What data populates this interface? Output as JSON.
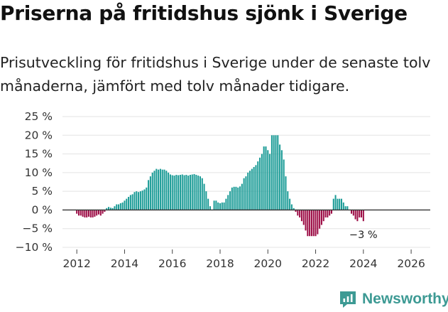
{
  "header": {
    "title": "Priserna på fritidshus sjönk i Sverige",
    "subtitle": "Prisutveckling för fritidshus i Sverige under de senaste tolv månaderna, jämfört med tolv månader tidigare."
  },
  "brand": {
    "name": "Newsworthy",
    "icon": "newsworthy-logo-icon",
    "color": "#3d9a94"
  },
  "colors": {
    "positive": "#1a9b96",
    "negative": "#9c0c45",
    "grid": "#e3e3e3",
    "axis": "#333333"
  },
  "chart_data": {
    "type": "bar",
    "title": "Priserna på fritidshus sjönk i Sverige",
    "xlabel": "",
    "ylabel": "",
    "unit": "%",
    "ylim": [
      -10,
      25
    ],
    "y_ticks": [
      25,
      20,
      15,
      10,
      5,
      0,
      -5,
      -10
    ],
    "y_tick_labels": [
      "25 %",
      "20 %",
      "15 %",
      "10 %",
      "5 %",
      "0 %",
      "−5 %",
      "−10 %"
    ],
    "x_range": [
      2011.4,
      2026.8
    ],
    "x_ticks": [
      2012,
      2014,
      2016,
      2018,
      2020,
      2022,
      2024,
      2026
    ],
    "x_tick_labels": [
      "2012",
      "2014",
      "2016",
      "2018",
      "2020",
      "2022",
      "2024",
      "2026"
    ],
    "series": [
      {
        "name": "Prisutveckling",
        "start_year": 2012,
        "start_month": 1,
        "values": [
          -1,
          -1.5,
          -1.5,
          -1.8,
          -2,
          -2,
          -1.8,
          -2,
          -2,
          -1.8,
          -1.5,
          -1.2,
          -1.5,
          -1,
          -0.5,
          0.5,
          0.8,
          0.6,
          0.5,
          1,
          1.5,
          1.5,
          1.8,
          2,
          2.5,
          3,
          3.5,
          4,
          4.2,
          4.8,
          5,
          4.8,
          5,
          5.2,
          5.5,
          6,
          8,
          9,
          10,
          10.5,
          11,
          10.8,
          11,
          10.8,
          10.8,
          10.5,
          10,
          9.5,
          9.3,
          9.2,
          9.4,
          9.3,
          9.4,
          9.5,
          9.3,
          9.4,
          9.2,
          9.4,
          9.5,
          9.6,
          9.4,
          9.2,
          9,
          8.5,
          7,
          5,
          3,
          1,
          null,
          2.5,
          2.5,
          2,
          1.8,
          2,
          2,
          3,
          4,
          5,
          6,
          6.2,
          6.2,
          6,
          6.3,
          7,
          8.5,
          9,
          10,
          10.5,
          11,
          11.5,
          12,
          13,
          14,
          15,
          17,
          17,
          16,
          15,
          20,
          20,
          20,
          20,
          17.5,
          16,
          13.5,
          9,
          5,
          3,
          1.5,
          0.5,
          -0.5,
          -1.5,
          -2,
          -3,
          -4,
          -5.5,
          -7,
          -7,
          -7,
          -7,
          -7,
          -6.5,
          -5,
          -4,
          -3,
          -2,
          -2,
          -1.5,
          -1,
          3,
          4,
          3,
          3,
          3,
          2,
          1,
          1,
          0,
          -1,
          -1.5,
          -2.5,
          -3,
          -2,
          -2,
          -3
        ]
      }
    ],
    "annotations": [
      {
        "text": "−3 %",
        "target": "last"
      }
    ]
  }
}
